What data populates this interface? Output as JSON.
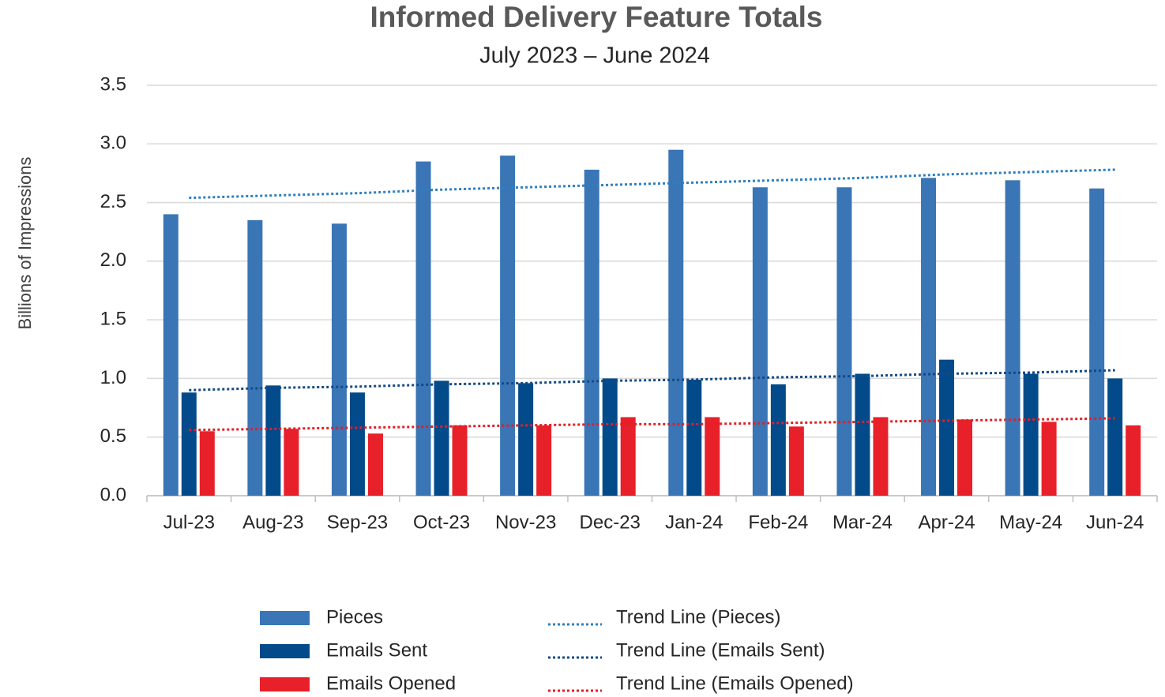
{
  "chart_data": {
    "type": "bar",
    "title": "Informed Delivery Feature Totals",
    "subtitle": "July 2023 – June 2024",
    "y_label": "Billions of Impressions",
    "categories": [
      "Jul-23",
      "Aug-23",
      "Sep-23",
      "Oct-23",
      "Nov-23",
      "Dec-23",
      "Jan-24",
      "Feb-24",
      "Mar-24",
      "Apr-24",
      "May-24",
      "Jun-24"
    ],
    "series": [
      {
        "name": "Pieces",
        "type": "bar",
        "color": "#3a75b5",
        "values": [
          2.4,
          2.35,
          2.32,
          2.85,
          2.9,
          2.78,
          2.95,
          2.63,
          2.63,
          2.71,
          2.69,
          2.62
        ]
      },
      {
        "name": "Emails Sent",
        "type": "bar",
        "color": "#034a8a",
        "values": [
          0.88,
          0.94,
          0.88,
          0.98,
          0.96,
          1.0,
          0.99,
          0.95,
          1.04,
          1.16,
          1.04,
          1.0
        ]
      },
      {
        "name": "Emails Opened",
        "type": "bar",
        "color": "#e8202a",
        "values": [
          0.55,
          0.57,
          0.53,
          0.6,
          0.6,
          0.67,
          0.67,
          0.59,
          0.67,
          0.65,
          0.63,
          0.6
        ]
      },
      {
        "name": "Trend Line (Pieces)",
        "type": "line",
        "style": "dotted",
        "color": "#2f7fc0",
        "values": [
          2.54,
          2.56,
          2.58,
          2.61,
          2.63,
          2.65,
          2.67,
          2.69,
          2.71,
          2.74,
          2.76,
          2.78
        ]
      },
      {
        "name": "Trend Line (Emails Sent)",
        "type": "line",
        "style": "dotted",
        "color": "#124a85",
        "values": [
          0.9,
          0.92,
          0.93,
          0.95,
          0.96,
          0.98,
          0.99,
          1.01,
          1.02,
          1.04,
          1.05,
          1.07
        ]
      },
      {
        "name": "Trend Line (Emails Opened)",
        "type": "line",
        "style": "dotted",
        "color": "#e41e26",
        "values": [
          0.56,
          0.57,
          0.58,
          0.59,
          0.6,
          0.61,
          0.61,
          0.62,
          0.63,
          0.64,
          0.65,
          0.66
        ]
      }
    ],
    "ylim": [
      0,
      3.5
    ],
    "yticks": [
      {
        "value": 0,
        "label": "0.0"
      },
      0.5,
      {
        "value": 1,
        "label": "1.0"
      },
      1.5,
      {
        "value": 2,
        "label": "2.0"
      },
      2.5,
      {
        "value": 3,
        "label": "3.0"
      },
      3.5
    ],
    "grid": true,
    "legend": "bottom"
  }
}
